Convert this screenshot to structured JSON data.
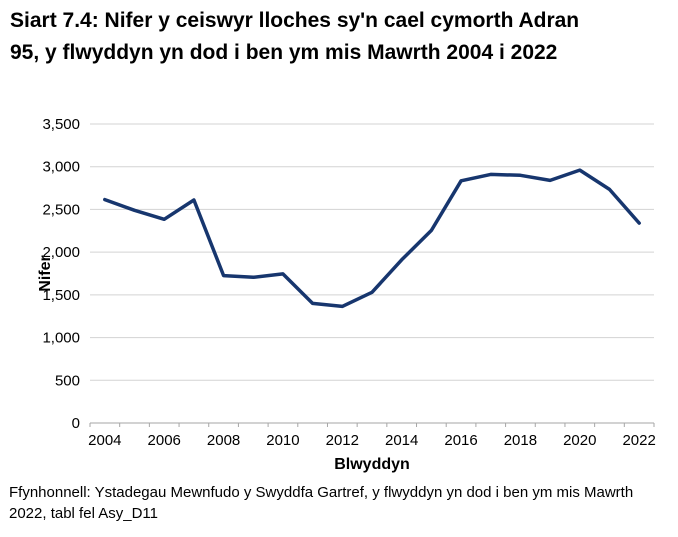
{
  "title": "Siart 7.4: Nifer y ceiswyr lloches sy'n cael cymorth Adran 95, y flwyddyn yn dod i ben ym mis Mawrth 2004 i 2022",
  "source": "Ffynhonnell: Ystadegau Mewnfudo y Swyddfa Gartref, y flwyddyn yn dod i ben ym mis Mawrth 2022, tabl fel Asy_D11",
  "colors": {
    "line": "#17366e",
    "gridline": "#d3d3d3",
    "axis": "#a6a6a6",
    "text": "#000000",
    "background": "#ffffff"
  },
  "chart_data": {
    "type": "line",
    "title": "Siart 7.4: Nifer y ceiswyr lloches sy'n cael cymorth Adran 95, y flwyddyn yn dod i ben ym mis Mawrth 2004 i 2022",
    "xlabel": "Blwyddyn",
    "ylabel": "Nifer",
    "x": [
      2004,
      2005,
      2006,
      2007,
      2008,
      2009,
      2010,
      2011,
      2012,
      2013,
      2014,
      2015,
      2016,
      2017,
      2018,
      2019,
      2020,
      2021,
      2022
    ],
    "series": [
      {
        "name": "Nifer y ceiswyr lloches sy'n cael cymorth Adran 95",
        "values": [
          2615,
          2490,
          2385,
          2610,
          1725,
          1705,
          1745,
          1400,
          1365,
          1530,
          1910,
          2255,
          2835,
          2910,
          2900,
          2840,
          2960,
          2735,
          2340
        ]
      }
    ],
    "ylim": [
      0,
      3500
    ],
    "y_tick_step": 500,
    "y_tick_labels": [
      "0",
      "500",
      "1,000",
      "1,500",
      "2,000",
      "2,500",
      "3,000",
      "3,500"
    ],
    "x_tick_labels": [
      "2004",
      "2006",
      "2008",
      "2010",
      "2012",
      "2014",
      "2016",
      "2018",
      "2020",
      "2022"
    ],
    "grid": "horizontal",
    "legend": "none"
  }
}
